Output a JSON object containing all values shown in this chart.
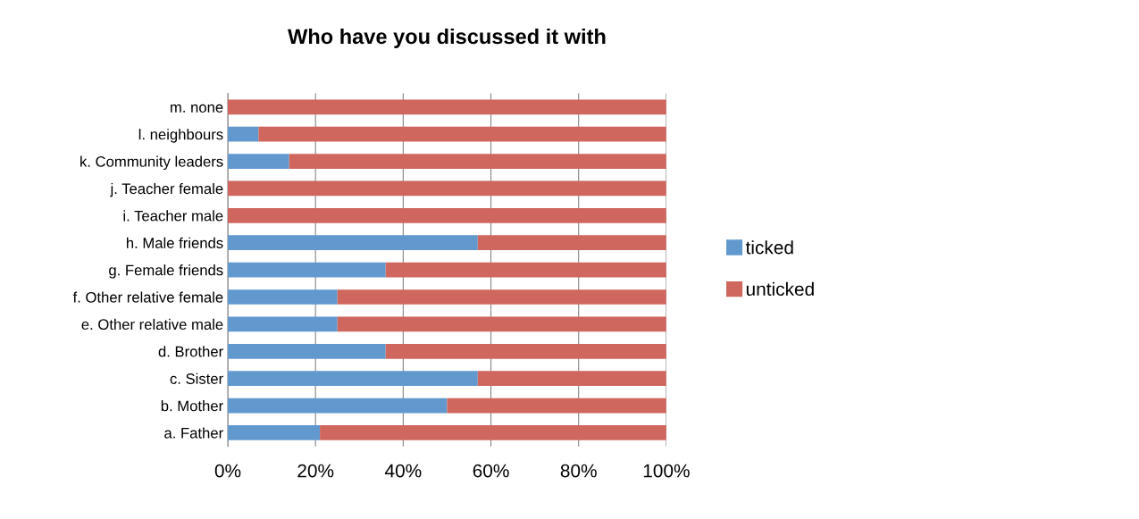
{
  "chart_data": {
    "type": "bar",
    "orientation": "horizontal",
    "stacked": true,
    "title": "Who have you discussed it with",
    "categories": [
      "m. none",
      "l. neighbours",
      "k. Community leaders",
      "j. Teacher female",
      "i. Teacher male",
      "h. Male friends",
      "g. Female friends",
      "f. Other relative female",
      "e. Other relative male",
      "d. Brother",
      "c. Sister",
      "b. Mother",
      "a. Father"
    ],
    "series": [
      {
        "name": "ticked",
        "color": "#6199cf",
        "values": [
          0,
          7,
          14,
          0,
          0,
          57,
          36,
          25,
          25,
          36,
          57,
          50,
          21
        ]
      },
      {
        "name": "unticked",
        "color": "#cf675e",
        "values": [
          100,
          93,
          86,
          100,
          100,
          43,
          64,
          75,
          75,
          64,
          43,
          50,
          79
        ]
      }
    ],
    "xlim": [
      0,
      100
    ],
    "xticks": [
      {
        "value": 0,
        "label": "0%"
      },
      {
        "value": 20,
        "label": "20%"
      },
      {
        "value": 40,
        "label": "40%"
      },
      {
        "value": 60,
        "label": "60%"
      },
      {
        "value": 80,
        "label": "80%"
      },
      {
        "value": 100,
        "label": "100%"
      }
    ],
    "grid": "x",
    "legend": "right"
  }
}
